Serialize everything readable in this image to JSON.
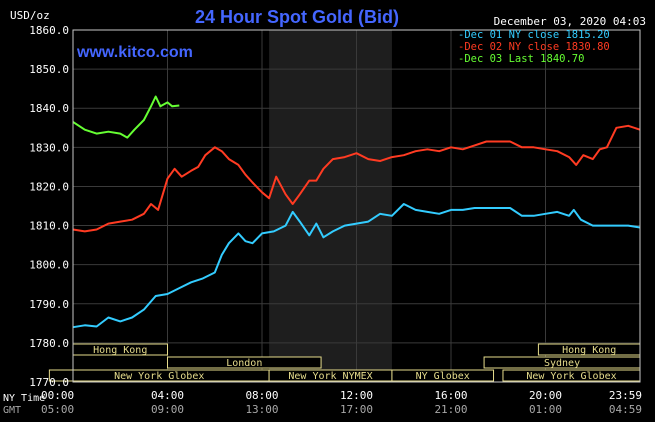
{
  "chart_data": {
    "type": "line",
    "title": "24 Hour Spot Gold (Bid)",
    "unit_label": "USD/oz",
    "site": "www.kitco.com",
    "timestamp": "December 03, 2020 04:03",
    "y_ticks": [
      "1860.0",
      "1850.0",
      "1840.0",
      "1830.0",
      "1820.0",
      "1810.0",
      "1800.0",
      "1790.0",
      "1780.0",
      "1770.0"
    ],
    "ylim": [
      1770,
      1860
    ],
    "x_row_labels": {
      "ny": "NY Time",
      "gmt": "GMT"
    },
    "x_ticks_ny": [
      "00:00",
      "04:00",
      "08:00",
      "12:00",
      "16:00",
      "20:00",
      "23:59"
    ],
    "x_ticks_gmt": [
      "05:00",
      "09:00",
      "13:00",
      "17:00",
      "21:00",
      "01:00",
      "04:59"
    ],
    "xlim_hours": [
      0,
      24
    ],
    "grid": true,
    "legend": [
      {
        "label": "Dec 01 NY close 1815.20",
        "color": "#33ccff"
      },
      {
        "label": "Dec 02 NY close 1830.80",
        "color": "#ff3b22"
      },
      {
        "label": "Dec 03 Last 1840.70",
        "color": "#66ff33"
      }
    ],
    "series": [
      {
        "color": "#33ccff",
        "points": [
          [
            0,
            1784.0
          ],
          [
            0.5,
            1784.5
          ],
          [
            1.0,
            1784.2
          ],
          [
            1.5,
            1786.5
          ],
          [
            2.0,
            1785.5
          ],
          [
            2.5,
            1786.5
          ],
          [
            3.0,
            1788.5
          ],
          [
            3.5,
            1792.0
          ],
          [
            4.0,
            1792.5
          ],
          [
            4.5,
            1794.0
          ],
          [
            5.0,
            1795.5
          ],
          [
            5.5,
            1796.5
          ],
          [
            6.0,
            1798.0
          ],
          [
            6.3,
            1802.5
          ],
          [
            6.6,
            1805.5
          ],
          [
            7.0,
            1808.0
          ],
          [
            7.3,
            1806.0
          ],
          [
            7.6,
            1805.5
          ],
          [
            8.0,
            1808.0
          ],
          [
            8.5,
            1808.5
          ],
          [
            9.0,
            1810.0
          ],
          [
            9.3,
            1813.5
          ],
          [
            9.6,
            1811.0
          ],
          [
            10.0,
            1807.5
          ],
          [
            10.3,
            1810.5
          ],
          [
            10.6,
            1807.0
          ],
          [
            11.0,
            1808.5
          ],
          [
            11.5,
            1810.0
          ],
          [
            12.0,
            1810.5
          ],
          [
            12.5,
            1811.0
          ],
          [
            13.0,
            1813.0
          ],
          [
            13.5,
            1812.5
          ],
          [
            14.0,
            1815.5
          ],
          [
            14.5,
            1814.0
          ],
          [
            15.0,
            1813.5
          ],
          [
            15.5,
            1813.0
          ],
          [
            16.0,
            1814.0
          ],
          [
            16.5,
            1814.0
          ],
          [
            17.0,
            1814.5
          ],
          [
            17.5,
            1814.5
          ],
          [
            18.0,
            1814.5
          ],
          [
            18.5,
            1814.5
          ],
          [
            19.0,
            1812.5
          ],
          [
            19.5,
            1812.5
          ],
          [
            20.0,
            1813.0
          ],
          [
            20.5,
            1813.5
          ],
          [
            21.0,
            1812.5
          ],
          [
            21.2,
            1814.0
          ],
          [
            21.5,
            1811.5
          ],
          [
            22.0,
            1810.0
          ],
          [
            22.5,
            1810.0
          ],
          [
            23.0,
            1810.0
          ],
          [
            23.5,
            1810.0
          ],
          [
            24.0,
            1809.5
          ]
        ]
      },
      {
        "color": "#ff3b22",
        "points": [
          [
            0,
            1809.0
          ],
          [
            0.5,
            1808.5
          ],
          [
            1.0,
            1809.0
          ],
          [
            1.5,
            1810.5
          ],
          [
            2.0,
            1811.0
          ],
          [
            2.5,
            1811.5
          ],
          [
            3.0,
            1813.0
          ],
          [
            3.3,
            1815.5
          ],
          [
            3.6,
            1814.0
          ],
          [
            4.0,
            1822.0
          ],
          [
            4.3,
            1824.5
          ],
          [
            4.6,
            1822.5
          ],
          [
            5.0,
            1824.0
          ],
          [
            5.3,
            1825.0
          ],
          [
            5.6,
            1828.0
          ],
          [
            6.0,
            1830.0
          ],
          [
            6.3,
            1829.0
          ],
          [
            6.6,
            1827.0
          ],
          [
            7.0,
            1825.5
          ],
          [
            7.3,
            1823.0
          ],
          [
            7.6,
            1821.0
          ],
          [
            8.0,
            1818.5
          ],
          [
            8.3,
            1817.0
          ],
          [
            8.6,
            1822.5
          ],
          [
            9.0,
            1818.0
          ],
          [
            9.3,
            1815.5
          ],
          [
            9.6,
            1818.0
          ],
          [
            10.0,
            1821.5
          ],
          [
            10.3,
            1821.5
          ],
          [
            10.6,
            1824.5
          ],
          [
            11.0,
            1827.0
          ],
          [
            11.5,
            1827.5
          ],
          [
            12.0,
            1828.5
          ],
          [
            12.5,
            1827.0
          ],
          [
            13.0,
            1826.5
          ],
          [
            13.5,
            1827.5
          ],
          [
            14.0,
            1828.0
          ],
          [
            14.5,
            1829.0
          ],
          [
            15.0,
            1829.5
          ],
          [
            15.5,
            1829.0
          ],
          [
            16.0,
            1830.0
          ],
          [
            16.5,
            1829.5
          ],
          [
            17.0,
            1830.5
          ],
          [
            17.5,
            1831.5
          ],
          [
            18.0,
            1831.5
          ],
          [
            18.5,
            1831.5
          ],
          [
            19.0,
            1830.0
          ],
          [
            19.5,
            1830.0
          ],
          [
            20.0,
            1829.5
          ],
          [
            20.5,
            1829.0
          ],
          [
            21.0,
            1827.5
          ],
          [
            21.3,
            1825.5
          ],
          [
            21.6,
            1828.0
          ],
          [
            22.0,
            1827.0
          ],
          [
            22.3,
            1829.5
          ],
          [
            22.6,
            1830.0
          ],
          [
            23.0,
            1835.0
          ],
          [
            23.5,
            1835.5
          ],
          [
            24.0,
            1834.5
          ]
        ]
      },
      {
        "color": "#66ff33",
        "points": [
          [
            0,
            1836.5
          ],
          [
            0.5,
            1834.5
          ],
          [
            1.0,
            1833.5
          ],
          [
            1.5,
            1834.0
          ],
          [
            2.0,
            1833.5
          ],
          [
            2.3,
            1832.5
          ],
          [
            2.6,
            1834.5
          ],
          [
            3.0,
            1837.0
          ],
          [
            3.3,
            1840.5
          ],
          [
            3.5,
            1843.0
          ],
          [
            3.7,
            1840.5
          ],
          [
            4.0,
            1841.5
          ],
          [
            4.2,
            1840.5
          ],
          [
            4.5,
            1840.7
          ]
        ]
      }
    ],
    "session_bars": [
      {
        "label": "Hong Kong",
        "row": 0
      },
      {
        "label": "London",
        "row": 1
      },
      {
        "label": "New York Globex",
        "row": 2
      },
      {
        "label": "New York NYMEX",
        "row": 2
      },
      {
        "label": "NY Globex",
        "row": 2
      },
      {
        "label": "Hong Kong",
        "row": 0
      },
      {
        "label": "Sydney",
        "row": 1
      },
      {
        "label": "New York Globex",
        "row": 2
      }
    ]
  }
}
